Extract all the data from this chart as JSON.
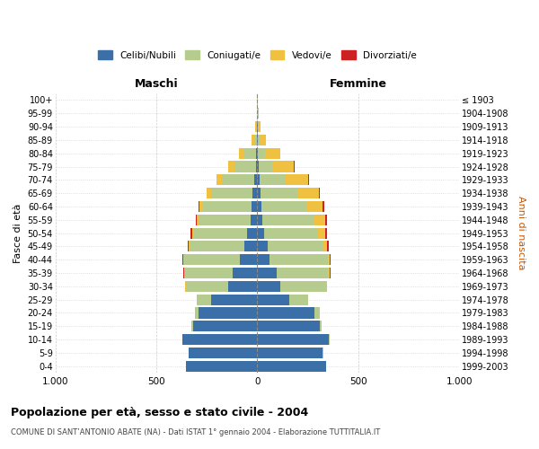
{
  "age_groups": [
    "0-4",
    "5-9",
    "10-14",
    "15-19",
    "20-24",
    "25-29",
    "30-34",
    "35-39",
    "40-44",
    "45-49",
    "50-54",
    "55-59",
    "60-64",
    "65-69",
    "70-74",
    "75-79",
    "80-84",
    "85-89",
    "90-94",
    "95-99",
    "100+"
  ],
  "birth_years": [
    "1999-2003",
    "1994-1998",
    "1989-1993",
    "1984-1988",
    "1979-1983",
    "1974-1978",
    "1969-1973",
    "1964-1968",
    "1959-1963",
    "1954-1958",
    "1949-1953",
    "1944-1948",
    "1939-1943",
    "1934-1938",
    "1929-1933",
    "1924-1928",
    "1919-1923",
    "1914-1918",
    "1909-1913",
    "1904-1908",
    "≤ 1903"
  ],
  "males": {
    "celibi": [
      355,
      340,
      370,
      320,
      290,
      230,
      145,
      120,
      85,
      65,
      50,
      35,
      30,
      25,
      15,
      8,
      5,
      2,
      1,
      0,
      0
    ],
    "coniugati": [
      0,
      1,
      3,
      5,
      20,
      70,
      210,
      240,
      280,
      270,
      265,
      255,
      240,
      205,
      160,
      100,
      60,
      15,
      5,
      2,
      1
    ],
    "vedovi": [
      0,
      0,
      0,
      0,
      0,
      0,
      1,
      2,
      3,
      5,
      8,
      10,
      15,
      20,
      25,
      35,
      25,
      10,
      3,
      1,
      0
    ],
    "divorziati": [
      0,
      0,
      0,
      0,
      0,
      1,
      2,
      3,
      3,
      5,
      6,
      5,
      5,
      3,
      3,
      3,
      1,
      1,
      0,
      0,
      0
    ]
  },
  "females": {
    "nubili": [
      340,
      325,
      355,
      310,
      285,
      160,
      115,
      95,
      60,
      50,
      35,
      25,
      20,
      15,
      10,
      5,
      3,
      2,
      1,
      0,
      0
    ],
    "coniugate": [
      1,
      2,
      5,
      10,
      25,
      90,
      225,
      260,
      290,
      275,
      265,
      255,
      225,
      190,
      130,
      70,
      35,
      10,
      4,
      2,
      1
    ],
    "vedove": [
      0,
      0,
      0,
      0,
      0,
      1,
      3,
      5,
      10,
      20,
      35,
      55,
      80,
      100,
      110,
      105,
      75,
      30,
      10,
      3,
      1
    ],
    "divorziate": [
      0,
      0,
      0,
      0,
      0,
      1,
      3,
      4,
      5,
      8,
      8,
      8,
      8,
      5,
      4,
      3,
      2,
      1,
      0,
      0,
      0
    ]
  },
  "colors": {
    "celibi": "#3a6fa8",
    "coniugati": "#b5cc8e",
    "vedovi": "#f0c040",
    "divorziati": "#cc2222"
  },
  "xlim": 1000,
  "title": "Popolazione per età, sesso e stato civile - 2004",
  "subtitle": "COMUNE DI SANT’ANTONIO ABATE (NA) - Dati ISTAT 1° gennaio 2004 - Elaborazione TUTTITALIA.IT",
  "ylabel": "Fasce di età",
  "ylabel_right": "Anni di nascita",
  "legend_labels": [
    "Celibi/Nubili",
    "Coniugati/e",
    "Vedovi/e",
    "Divorziati/e"
  ],
  "maschi_header": "Maschi",
  "femmine_header": "Femmine"
}
